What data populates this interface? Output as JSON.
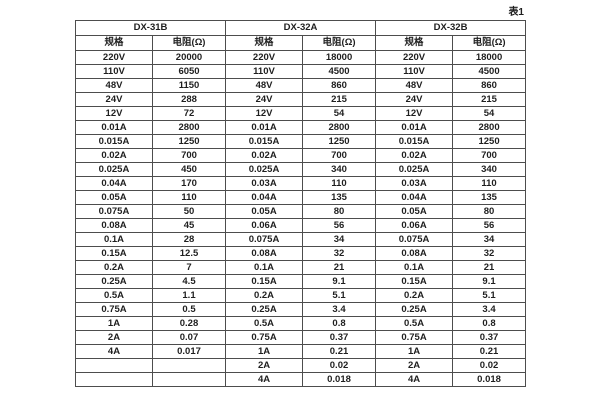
{
  "title_label": "表1",
  "colors": {
    "background": "#ffffff",
    "border": "#4d4d4d",
    "text": "#1f1f1f"
  },
  "table": {
    "groups": [
      {
        "name": "DX-31B",
        "headers": [
          "规格",
          "电阻(Ω)"
        ],
        "rows": [
          [
            "220V",
            "20000"
          ],
          [
            "110V",
            "6050"
          ],
          [
            "48V",
            "1150"
          ],
          [
            "24V",
            "288"
          ],
          [
            "12V",
            "72"
          ],
          [
            "0.01A",
            "2800"
          ],
          [
            "0.015A",
            "1250"
          ],
          [
            "0.02A",
            "700"
          ],
          [
            "0.025A",
            "450"
          ],
          [
            "0.04A",
            "170"
          ],
          [
            "0.05A",
            "110"
          ],
          [
            "0.075A",
            "50"
          ],
          [
            "0.08A",
            "45"
          ],
          [
            "0.1A",
            "28"
          ],
          [
            "0.15A",
            "12.5"
          ],
          [
            "0.2A",
            "7"
          ],
          [
            "0.25A",
            "4.5"
          ],
          [
            "0.5A",
            "1.1"
          ],
          [
            "0.75A",
            "0.5"
          ],
          [
            "1A",
            "0.28"
          ],
          [
            "2A",
            "0.07"
          ],
          [
            "4A",
            "0.017"
          ],
          [
            "",
            ""
          ],
          [
            "",
            ""
          ]
        ]
      },
      {
        "name": "DX-32A",
        "headers": [
          "规格",
          "电阻(Ω)"
        ],
        "rows": [
          [
            "220V",
            "18000"
          ],
          [
            "110V",
            "4500"
          ],
          [
            "48V",
            "860"
          ],
          [
            "24V",
            "215"
          ],
          [
            "12V",
            "54"
          ],
          [
            "0.01A",
            "2800"
          ],
          [
            "0.015A",
            "1250"
          ],
          [
            "0.02A",
            "700"
          ],
          [
            "0.025A",
            "340"
          ],
          [
            "0.03A",
            "110"
          ],
          [
            "0.04A",
            "135"
          ],
          [
            "0.05A",
            "80"
          ],
          [
            "0.06A",
            "56"
          ],
          [
            "0.075A",
            "34"
          ],
          [
            "0.08A",
            "32"
          ],
          [
            "0.1A",
            "21"
          ],
          [
            "0.15A",
            "9.1"
          ],
          [
            "0.2A",
            "5.1"
          ],
          [
            "0.25A",
            "3.4"
          ],
          [
            "0.5A",
            "0.8"
          ],
          [
            "0.75A",
            "0.37"
          ],
          [
            "1A",
            "0.21"
          ],
          [
            "2A",
            "0.02"
          ],
          [
            "4A",
            "0.018"
          ]
        ]
      },
      {
        "name": "DX-32B",
        "headers": [
          "规格",
          "电阻(Ω)"
        ],
        "rows": [
          [
            "220V",
            "18000"
          ],
          [
            "110V",
            "4500"
          ],
          [
            "48V",
            "860"
          ],
          [
            "24V",
            "215"
          ],
          [
            "12V",
            "54"
          ],
          [
            "0.01A",
            "2800"
          ],
          [
            "0.015A",
            "1250"
          ],
          [
            "0.02A",
            "700"
          ],
          [
            "0.025A",
            "340"
          ],
          [
            "0.03A",
            "110"
          ],
          [
            "0.04A",
            "135"
          ],
          [
            "0.05A",
            "80"
          ],
          [
            "0.06A",
            "56"
          ],
          [
            "0.075A",
            "34"
          ],
          [
            "0.08A",
            "32"
          ],
          [
            "0.1A",
            "21"
          ],
          [
            "0.15A",
            "9.1"
          ],
          [
            "0.2A",
            "5.1"
          ],
          [
            "0.25A",
            "3.4"
          ],
          [
            "0.5A",
            "0.8"
          ],
          [
            "0.75A",
            "0.37"
          ],
          [
            "1A",
            "0.21"
          ],
          [
            "2A",
            "0.02"
          ],
          [
            "4A",
            "0.018"
          ]
        ]
      }
    ]
  }
}
